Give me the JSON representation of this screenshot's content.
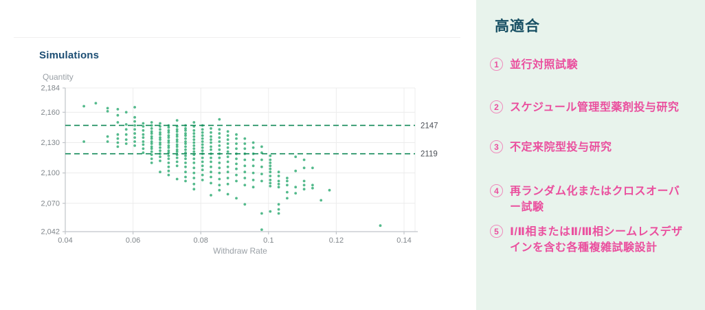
{
  "chart": {
    "title": "Simulations",
    "y_axis_title": "Quantity",
    "x_axis_title": "Withdraw Rate"
  },
  "chart_data": {
    "type": "scatter",
    "title": "Simulations",
    "xlabel": "Withdraw Rate",
    "ylabel": "Quantity",
    "xlim": [
      0.04,
      0.14
    ],
    "ylim": [
      2042,
      2184
    ],
    "grid": true,
    "x_ticks": [
      0.04,
      0.06,
      0.08,
      0.1,
      0.12,
      0.14
    ],
    "x_tick_labels": [
      "0.04",
      "0.06",
      "0.08",
      "0.1",
      "0.12",
      "0.14"
    ],
    "y_ticks": [
      2184,
      2160,
      2130,
      2100,
      2070,
      2042
    ],
    "y_tick_labels": [
      "2,184",
      "2,160",
      "2,130",
      "2,100",
      "2,070",
      "2,042"
    ],
    "reference_lines": [
      {
        "value": 2147,
        "label": "2147"
      },
      {
        "value": 2119,
        "label": "2119"
      }
    ],
    "colors": {
      "point": "#36ae78",
      "ref_line": "#0f8756",
      "grid": "#ececec",
      "axis": "#c0c4c9"
    },
    "points": [
      [
        0.0455,
        2166
      ],
      [
        0.0455,
        2131
      ],
      [
        0.049,
        2169
      ],
      [
        0.0525,
        2164
      ],
      [
        0.0525,
        2161
      ],
      [
        0.0525,
        2136
      ],
      [
        0.0525,
        2131
      ],
      [
        0.0555,
        2163
      ],
      [
        0.0555,
        2157
      ],
      [
        0.0555,
        2150
      ],
      [
        0.0555,
        2138
      ],
      [
        0.0555,
        2134
      ],
      [
        0.0555,
        2130
      ],
      [
        0.0555,
        2126
      ],
      [
        0.058,
        2160
      ],
      [
        0.058,
        2148
      ],
      [
        0.058,
        2143
      ],
      [
        0.058,
        2138
      ],
      [
        0.058,
        2133
      ],
      [
        0.058,
        2129
      ],
      [
        0.0605,
        2165
      ],
      [
        0.0605,
        2155
      ],
      [
        0.0605,
        2151
      ],
      [
        0.0605,
        2147
      ],
      [
        0.0605,
        2143
      ],
      [
        0.0605,
        2139
      ],
      [
        0.0605,
        2135
      ],
      [
        0.0605,
        2131
      ],
      [
        0.0605,
        2127
      ],
      [
        0.063,
        2149
      ],
      [
        0.063,
        2146
      ],
      [
        0.063,
        2142
      ],
      [
        0.063,
        2138
      ],
      [
        0.063,
        2135
      ],
      [
        0.063,
        2131
      ],
      [
        0.063,
        2128
      ],
      [
        0.063,
        2124
      ],
      [
        0.063,
        2120
      ],
      [
        0.0655,
        2150
      ],
      [
        0.0655,
        2147
      ],
      [
        0.0655,
        2144
      ],
      [
        0.0655,
        2141
      ],
      [
        0.0655,
        2139
      ],
      [
        0.0655,
        2136
      ],
      [
        0.0655,
        2134
      ],
      [
        0.0655,
        2131
      ],
      [
        0.0655,
        2129
      ],
      [
        0.0655,
        2126
      ],
      [
        0.0655,
        2124
      ],
      [
        0.0655,
        2121
      ],
      [
        0.0655,
        2118
      ],
      [
        0.0655,
        2114
      ],
      [
        0.0655,
        2110
      ],
      [
        0.068,
        2149
      ],
      [
        0.068,
        2146
      ],
      [
        0.068,
        2143
      ],
      [
        0.068,
        2140
      ],
      [
        0.068,
        2138
      ],
      [
        0.068,
        2135
      ],
      [
        0.068,
        2133
      ],
      [
        0.068,
        2130
      ],
      [
        0.068,
        2128
      ],
      [
        0.068,
        2125
      ],
      [
        0.068,
        2122
      ],
      [
        0.068,
        2119
      ],
      [
        0.068,
        2116
      ],
      [
        0.068,
        2112
      ],
      [
        0.068,
        2101
      ],
      [
        0.0705,
        2147
      ],
      [
        0.0705,
        2145
      ],
      [
        0.0705,
        2142
      ],
      [
        0.0705,
        2140
      ],
      [
        0.0705,
        2137
      ],
      [
        0.0705,
        2135
      ],
      [
        0.0705,
        2132
      ],
      [
        0.0705,
        2130
      ],
      [
        0.0705,
        2127
      ],
      [
        0.0705,
        2125
      ],
      [
        0.0705,
        2122
      ],
      [
        0.0705,
        2120
      ],
      [
        0.0705,
        2117
      ],
      [
        0.0705,
        2114
      ],
      [
        0.0705,
        2110
      ],
      [
        0.0705,
        2106
      ],
      [
        0.0705,
        2102
      ],
      [
        0.0705,
        2098
      ],
      [
        0.073,
        2152
      ],
      [
        0.073,
        2146
      ],
      [
        0.073,
        2143
      ],
      [
        0.073,
        2141
      ],
      [
        0.073,
        2138
      ],
      [
        0.073,
        2136
      ],
      [
        0.073,
        2133
      ],
      [
        0.073,
        2131
      ],
      [
        0.073,
        2128
      ],
      [
        0.073,
        2126
      ],
      [
        0.073,
        2123
      ],
      [
        0.073,
        2121
      ],
      [
        0.073,
        2118
      ],
      [
        0.073,
        2115
      ],
      [
        0.073,
        2111
      ],
      [
        0.073,
        2107
      ],
      [
        0.073,
        2094
      ],
      [
        0.0755,
        2147
      ],
      [
        0.0755,
        2144
      ],
      [
        0.0755,
        2142
      ],
      [
        0.0755,
        2139
      ],
      [
        0.0755,
        2137
      ],
      [
        0.0755,
        2134
      ],
      [
        0.0755,
        2131
      ],
      [
        0.0755,
        2129
      ],
      [
        0.0755,
        2126
      ],
      [
        0.0755,
        2123
      ],
      [
        0.0755,
        2120
      ],
      [
        0.0755,
        2117
      ],
      [
        0.0755,
        2114
      ],
      [
        0.0755,
        2110
      ],
      [
        0.0755,
        2106
      ],
      [
        0.0755,
        2101
      ],
      [
        0.0755,
        2096
      ],
      [
        0.0755,
        2092
      ],
      [
        0.078,
        2150
      ],
      [
        0.078,
        2146
      ],
      [
        0.078,
        2142
      ],
      [
        0.078,
        2139
      ],
      [
        0.078,
        2136
      ],
      [
        0.078,
        2133
      ],
      [
        0.078,
        2130
      ],
      [
        0.078,
        2127
      ],
      [
        0.078,
        2124
      ],
      [
        0.078,
        2121
      ],
      [
        0.078,
        2118
      ],
      [
        0.078,
        2114
      ],
      [
        0.078,
        2110
      ],
      [
        0.078,
        2105
      ],
      [
        0.078,
        2100
      ],
      [
        0.078,
        2095
      ],
      [
        0.078,
        2089
      ],
      [
        0.078,
        2084
      ],
      [
        0.0805,
        2147
      ],
      [
        0.0805,
        2143
      ],
      [
        0.0805,
        2140
      ],
      [
        0.0805,
        2137
      ],
      [
        0.0805,
        2134
      ],
      [
        0.0805,
        2131
      ],
      [
        0.0805,
        2128
      ],
      [
        0.0805,
        2125
      ],
      [
        0.0805,
        2122
      ],
      [
        0.0805,
        2119
      ],
      [
        0.0805,
        2115
      ],
      [
        0.0805,
        2111
      ],
      [
        0.0805,
        2107
      ],
      [
        0.0805,
        2103
      ],
      [
        0.0805,
        2098
      ],
      [
        0.0805,
        2093
      ],
      [
        0.083,
        2144
      ],
      [
        0.083,
        2140
      ],
      [
        0.083,
        2136
      ],
      [
        0.083,
        2133
      ],
      [
        0.083,
        2130
      ],
      [
        0.083,
        2126
      ],
      [
        0.083,
        2123
      ],
      [
        0.083,
        2119
      ],
      [
        0.083,
        2115
      ],
      [
        0.083,
        2111
      ],
      [
        0.083,
        2106
      ],
      [
        0.083,
        2101
      ],
      [
        0.083,
        2096
      ],
      [
        0.083,
        2090
      ],
      [
        0.083,
        2078
      ],
      [
        0.0855,
        2153
      ],
      [
        0.0855,
        2143
      ],
      [
        0.0855,
        2139
      ],
      [
        0.0855,
        2135
      ],
      [
        0.0855,
        2131
      ],
      [
        0.0855,
        2127
      ],
      [
        0.0855,
        2123
      ],
      [
        0.0855,
        2119
      ],
      [
        0.0855,
        2115
      ],
      [
        0.0855,
        2110
      ],
      [
        0.0855,
        2105
      ],
      [
        0.0855,
        2100
      ],
      [
        0.0855,
        2094
      ],
      [
        0.0855,
        2088
      ],
      [
        0.0855,
        2083
      ],
      [
        0.088,
        2141
      ],
      [
        0.088,
        2137
      ],
      [
        0.088,
        2133
      ],
      [
        0.088,
        2129
      ],
      [
        0.088,
        2125
      ],
      [
        0.088,
        2121
      ],
      [
        0.088,
        2116
      ],
      [
        0.088,
        2111
      ],
      [
        0.088,
        2106
      ],
      [
        0.088,
        2101
      ],
      [
        0.088,
        2095
      ],
      [
        0.088,
        2089
      ],
      [
        0.088,
        2079
      ],
      [
        0.0905,
        2138
      ],
      [
        0.0905,
        2134
      ],
      [
        0.0905,
        2129
      ],
      [
        0.0905,
        2124
      ],
      [
        0.0905,
        2119
      ],
      [
        0.0905,
        2114
      ],
      [
        0.0905,
        2109
      ],
      [
        0.0905,
        2104
      ],
      [
        0.0905,
        2098
      ],
      [
        0.0905,
        2092
      ],
      [
        0.0905,
        2075
      ],
      [
        0.093,
        2134
      ],
      [
        0.093,
        2129
      ],
      [
        0.093,
        2124
      ],
      [
        0.093,
        2119
      ],
      [
        0.093,
        2113
      ],
      [
        0.093,
        2107
      ],
      [
        0.093,
        2101
      ],
      [
        0.093,
        2095
      ],
      [
        0.093,
        2088
      ],
      [
        0.093,
        2069
      ],
      [
        0.0955,
        2130
      ],
      [
        0.0955,
        2125
      ],
      [
        0.0955,
        2119
      ],
      [
        0.0955,
        2113
      ],
      [
        0.0955,
        2107
      ],
      [
        0.0955,
        2100
      ],
      [
        0.0955,
        2093
      ],
      [
        0.0955,
        2086
      ],
      [
        0.098,
        2126
      ],
      [
        0.098,
        2120
      ],
      [
        0.098,
        2113
      ],
      [
        0.098,
        2106
      ],
      [
        0.098,
        2099
      ],
      [
        0.098,
        2092
      ],
      [
        0.098,
        2060
      ],
      [
        0.098,
        2044
      ],
      [
        0.1005,
        2117
      ],
      [
        0.1005,
        2113
      ],
      [
        0.1005,
        2110
      ],
      [
        0.1005,
        2107
      ],
      [
        0.1005,
        2104
      ],
      [
        0.1005,
        2101
      ],
      [
        0.1005,
        2097
      ],
      [
        0.1005,
        2093
      ],
      [
        0.1005,
        2090
      ],
      [
        0.1005,
        2087
      ],
      [
        0.1005,
        2062
      ],
      [
        0.103,
        2101
      ],
      [
        0.103,
        2097
      ],
      [
        0.103,
        2092
      ],
      [
        0.103,
        2089
      ],
      [
        0.103,
        2086
      ],
      [
        0.103,
        2069
      ],
      [
        0.103,
        2064
      ],
      [
        0.103,
        2060
      ],
      [
        0.1055,
        2095
      ],
      [
        0.1055,
        2092
      ],
      [
        0.1055,
        2088
      ],
      [
        0.1055,
        2081
      ],
      [
        0.1055,
        2075
      ],
      [
        0.108,
        2116
      ],
      [
        0.108,
        2102
      ],
      [
        0.108,
        2086
      ],
      [
        0.108,
        2080
      ],
      [
        0.1105,
        2113
      ],
      [
        0.1105,
        2105
      ],
      [
        0.1105,
        2092
      ],
      [
        0.1105,
        2088
      ],
      [
        0.1105,
        2084
      ],
      [
        0.113,
        2105
      ],
      [
        0.113,
        2088
      ],
      [
        0.113,
        2085
      ],
      [
        0.1155,
        2073
      ],
      [
        0.118,
        2083
      ],
      [
        0.133,
        2048
      ]
    ]
  },
  "panel": {
    "title": "高適合",
    "accent_color": "#ea4f9e",
    "background": "#e8f3ec",
    "items": [
      {
        "number": "1",
        "label": "並行対照試験"
      },
      {
        "number": "2",
        "label": "スケジュール管理型薬剤投与研究"
      },
      {
        "number": "3",
        "label": "不定来院型投与研究"
      },
      {
        "number": "4",
        "label": "再ランダム化またはクロスオーバー試験"
      },
      {
        "number": "5",
        "label": "Ⅰ/Ⅱ相またはⅡ/Ⅲ相シームレスデザインを含む各種複雑試験設計"
      }
    ]
  }
}
